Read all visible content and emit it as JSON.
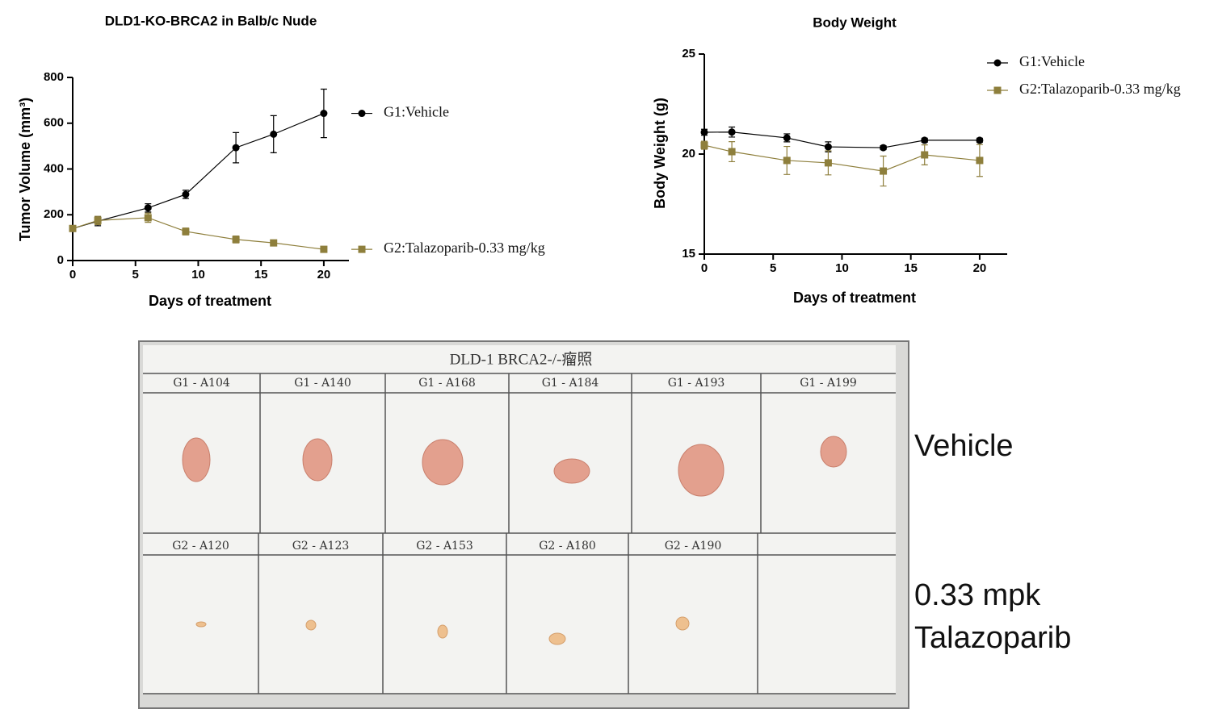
{
  "chart_data": [
    {
      "type": "line",
      "title": "DLD1-KO-BRCA2 in Balb/c Nude",
      "x_label": "Days of treatment",
      "y_label": "Tumor Volume (mm³)",
      "x": [
        0,
        2,
        6,
        9,
        13,
        16,
        20
      ],
      "series": [
        {
          "name": "G1:Vehicle",
          "color": "#000000",
          "marker": "circle",
          "values": [
            140,
            172,
            230,
            289,
            493,
            552,
            643
          ],
          "errors": [
            5,
            20,
            18,
            18,
            66,
            81,
            106
          ]
        },
        {
          "name": "G2:Talazoparib-0.33 mg/kg",
          "color": "#8e7f3c",
          "marker": "square",
          "values": [
            140,
            175,
            187,
            127,
            92,
            77,
            49
          ],
          "errors": [
            5,
            18,
            20,
            15,
            15,
            10,
            5
          ]
        }
      ],
      "xlim": [
        0,
        22
      ],
      "xticks": [
        0,
        5,
        10,
        15,
        20
      ],
      "ylim": [
        0,
        800
      ],
      "yticks": [
        0,
        200,
        400,
        600,
        800
      ],
      "legend": "right"
    },
    {
      "type": "line",
      "title": "Body Weight",
      "x_label": "Days of treatment",
      "y_label": "Body Weight (g)",
      "x": [
        0,
        2,
        6,
        9,
        13,
        16,
        20
      ],
      "series": [
        {
          "name": "G1:Vehicle",
          "color": "#000000",
          "marker": "circle",
          "values": [
            21.09,
            21.1,
            20.81,
            20.36,
            20.32,
            20.69,
            20.69
          ],
          "errors": [
            0.15,
            0.25,
            0.2,
            0.25,
            0.1,
            0.1,
            0.1
          ]
        },
        {
          "name": "G2:Talazoparib-0.33 mg/kg",
          "color": "#8e7f3c",
          "marker": "square",
          "values": [
            20.44,
            20.12,
            19.68,
            19.56,
            19.15,
            19.96,
            19.68
          ],
          "errors": [
            0.2,
            0.5,
            0.7,
            0.6,
            0.75,
            0.5,
            0.8
          ]
        }
      ],
      "xlim": [
        0,
        22
      ],
      "xticks": [
        0,
        5,
        10,
        15,
        20
      ],
      "ylim": [
        15,
        25
      ],
      "yticks": [
        15,
        20,
        25
      ],
      "legend": "upper right"
    }
  ],
  "photo": {
    "title": "DLD-1 BRCA2-/-瘤照",
    "row1_labels": [
      "G1 - A104",
      "G1 - A140",
      "G1 - A168",
      "G1 - A184",
      "G1 - A193",
      "G1 - A199"
    ],
    "row2_labels": [
      "G2 - A120",
      "G2 - A123",
      "G2 - A153",
      "G2 - A180",
      "G2 - A190"
    ],
    "vehicle_label": "Vehicle",
    "treated_label": [
      "0.33 mpk",
      "Talazoparib"
    ]
  }
}
